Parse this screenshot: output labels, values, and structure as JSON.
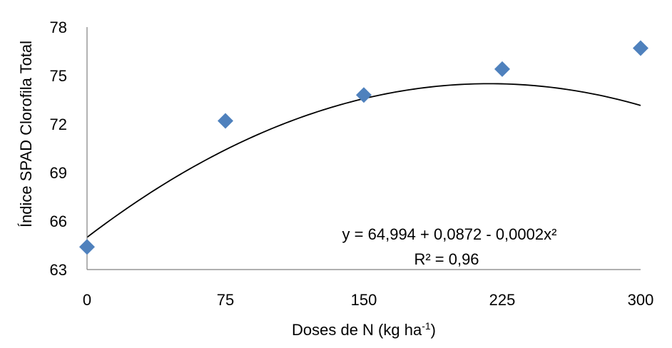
{
  "chart_data": {
    "type": "scatter",
    "xlabel": "Doses de N (kg ha",
    "xlabel_sup": "-1",
    "xlabel_suffix": ")",
    "ylabel": "Índice SPAD Clorofila Total",
    "xlim": [
      0,
      300
    ],
    "ylim": [
      63,
      78
    ],
    "x_ticks": [
      0,
      75,
      150,
      225,
      300
    ],
    "x_tick_labels": [
      "0",
      "75",
      "150",
      "225",
      "300"
    ],
    "y_ticks": [
      63,
      66,
      69,
      72,
      75,
      78
    ],
    "y_tick_labels": [
      "63",
      "66",
      "69",
      "72",
      "75",
      "78"
    ],
    "grid": false,
    "legend": "none",
    "series": [
      {
        "x": [
          0,
          75,
          150,
          225,
          300
        ],
        "y": [
          64.4,
          72.2,
          73.8,
          75.4,
          76.7
        ],
        "marker": "diamond",
        "color": "#4F81BD"
      }
    ],
    "trendline": {
      "type": "polynomial",
      "coefficients": [
        64.994,
        0.0872,
        -0.0002
      ],
      "color": "#000000"
    },
    "annotations": {
      "equation": "y = 64,994 + 0,0872 - 0,0002x²",
      "r_squared": "R² = 0,96"
    }
  }
}
